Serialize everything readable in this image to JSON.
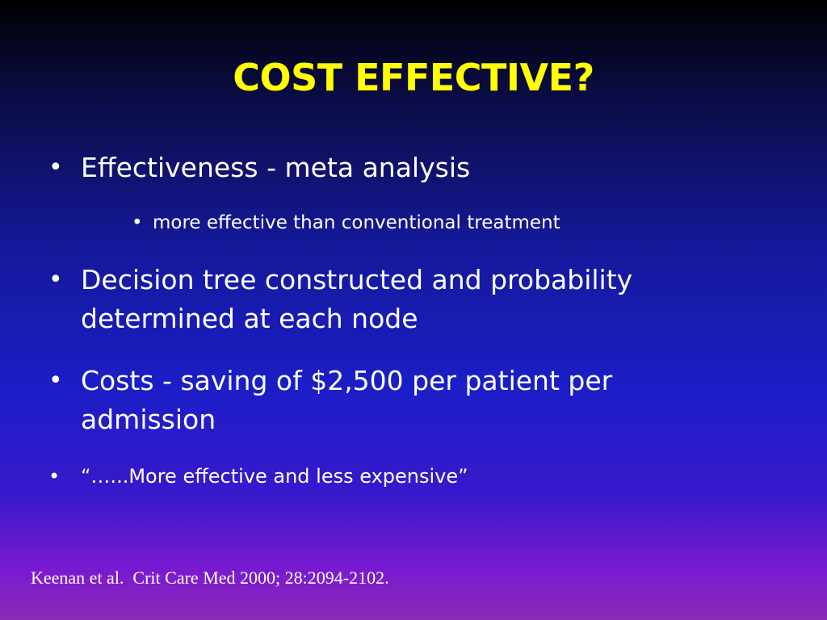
{
  "slide": {
    "title": "COST EFFECTIVE?",
    "bullets": [
      {
        "text": "Effectiveness - meta analysis"
      },
      {
        "text": "more effective than conventional treatment"
      },
      {
        "text": "Decision tree constructed and probability determined at each node"
      },
      {
        "text": "Costs - saving of $2,500 per patient per admission"
      },
      {
        "text": "“…...More effective and less expensive”"
      }
    ],
    "bullet_glyph": "•",
    "citation": "Keenan et al.  Crit Care Med 2000; 28:2094-2102."
  },
  "colors": {
    "title": "#ffff00",
    "text": "#ffffff",
    "background_top": "#000000",
    "background_middle": "#1a1ec6",
    "background_bottom": "#8a2cb4"
  }
}
